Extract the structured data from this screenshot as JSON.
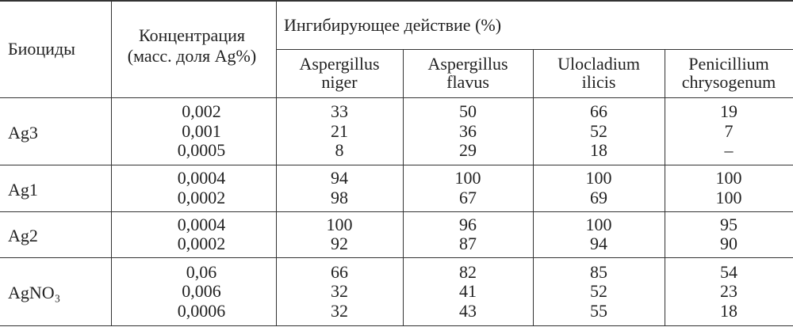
{
  "table": {
    "header": {
      "biocides": "Биоциды",
      "concentration": [
        "Концентрация",
        "(масс. доля Ag%)"
      ],
      "inhibition": "Ингибирующее действие (%)",
      "species": [
        [
          "Aspergillus",
          "niger"
        ],
        [
          "Aspergillus",
          "flavus"
        ],
        [
          "Ulocladium",
          "ilicis"
        ],
        [
          "Penicillium",
          "chrysogenum"
        ]
      ]
    },
    "groups": [
      {
        "name": "Ag3",
        "concentrations": [
          "0,002",
          "0,001",
          "0,0005"
        ],
        "values": [
          [
            33,
            50,
            66,
            19
          ],
          [
            21,
            36,
            52,
            7
          ],
          [
            8,
            29,
            18,
            "–"
          ]
        ]
      },
      {
        "name": "Ag1",
        "concentrations": [
          "0,0004",
          "0,0002"
        ],
        "values": [
          [
            94,
            100,
            100,
            100
          ],
          [
            98,
            67,
            69,
            100
          ]
        ]
      },
      {
        "name": "Ag2",
        "concentrations": [
          "0,0004",
          "0,0002"
        ],
        "values": [
          [
            100,
            96,
            100,
            95
          ],
          [
            92,
            87,
            94,
            90
          ]
        ]
      },
      {
        "name": "AgNO₃",
        "concentrations": [
          "0,06",
          "0,006",
          "0,0006"
        ],
        "values": [
          [
            66,
            82,
            85,
            54
          ],
          [
            32,
            41,
            52,
            23
          ],
          [
            32,
            43,
            55,
            18
          ]
        ]
      }
    ]
  }
}
